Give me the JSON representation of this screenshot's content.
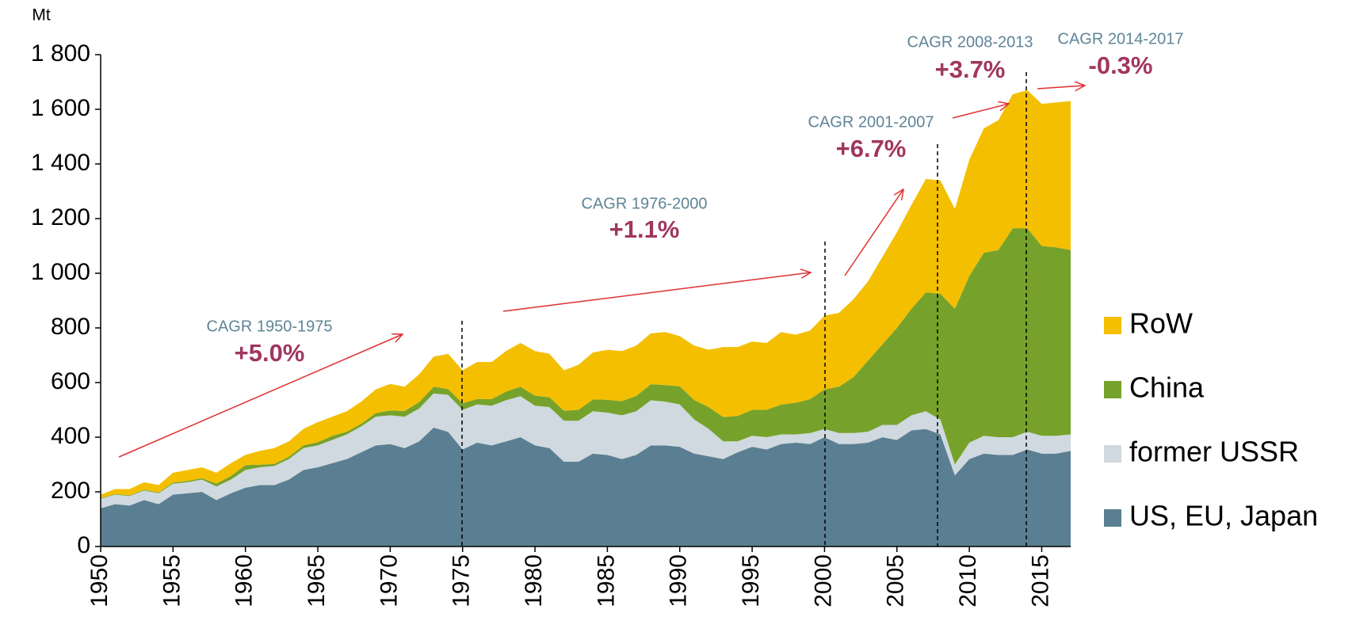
{
  "chart_data": {
    "type": "stacked_area",
    "y_unit_label": "Mt",
    "x": [
      1950,
      1951,
      1952,
      1953,
      1954,
      1955,
      1956,
      1957,
      1958,
      1959,
      1960,
      1961,
      1962,
      1963,
      1964,
      1965,
      1966,
      1967,
      1968,
      1969,
      1970,
      1971,
      1972,
      1973,
      1974,
      1975,
      1976,
      1977,
      1978,
      1979,
      1980,
      1981,
      1982,
      1983,
      1984,
      1985,
      1986,
      1987,
      1988,
      1989,
      1990,
      1991,
      1992,
      1993,
      1994,
      1995,
      1996,
      1997,
      1998,
      1999,
      2000,
      2001,
      2002,
      2003,
      2004,
      2005,
      2006,
      2007,
      2008,
      2009,
      2010,
      2011,
      2012,
      2013,
      2014,
      2015,
      2016,
      2017
    ],
    "series": [
      {
        "name": "US, EU, Japan",
        "color": "#5b7f92",
        "values": [
          140,
          155,
          150,
          170,
          155,
          190,
          195,
          200,
          170,
          195,
          215,
          225,
          225,
          245,
          280,
          290,
          305,
          320,
          345,
          370,
          375,
          360,
          385,
          435,
          420,
          355,
          380,
          370,
          385,
          400,
          370,
          360,
          310,
          310,
          340,
          335,
          320,
          335,
          370,
          370,
          365,
          340,
          330,
          320,
          345,
          365,
          355,
          375,
          380,
          375,
          400,
          375,
          375,
          380,
          400,
          390,
          425,
          430,
          410,
          260,
          320,
          340,
          335,
          335,
          355,
          340,
          340,
          350
        ]
      },
      {
        "name": "former USSR",
        "color": "#cfd9df",
        "values": [
          35,
          35,
          35,
          35,
          40,
          40,
          40,
          45,
          50,
          50,
          65,
          65,
          70,
          75,
          80,
          80,
          85,
          90,
          95,
          105,
          105,
          115,
          120,
          125,
          135,
          145,
          140,
          145,
          150,
          150,
          145,
          150,
          150,
          150,
          155,
          155,
          160,
          160,
          165,
          160,
          155,
          125,
          100,
          65,
          40,
          40,
          45,
          35,
          30,
          40,
          30,
          40,
          40,
          40,
          45,
          55,
          55,
          65,
          55,
          40,
          60,
          65,
          65,
          65,
          65,
          65,
          65,
          60
        ]
      },
      {
        "name": "China",
        "color": "#76a22b",
        "values": [
          2,
          2,
          2,
          3,
          3,
          4,
          5,
          5,
          10,
          13,
          18,
          9,
          7,
          8,
          10,
          12,
          15,
          10,
          9,
          13,
          18,
          21,
          23,
          25,
          21,
          24,
          20,
          24,
          32,
          35,
          37,
          36,
          37,
          40,
          43,
          47,
          52,
          56,
          59,
          61,
          66,
          71,
          80,
          89,
          93,
          95,
          101,
          109,
          116,
          124,
          145,
          170,
          205,
          260,
          295,
          355,
          390,
          435,
          460,
          570,
          610,
          670,
          685,
          765,
          745,
          695,
          690,
          675
        ]
      },
      {
        "name": "RoW",
        "color": "#f4bf00",
        "values": [
          13,
          18,
          23,
          27,
          27,
          36,
          40,
          40,
          40,
          47,
          37,
          51,
          58,
          57,
          60,
          73,
          70,
          75,
          81,
          87,
          97,
          89,
          102,
          110,
          129,
          121,
          135,
          136,
          148,
          160,
          163,
          159,
          148,
          165,
          172,
          183,
          183,
          184,
          186,
          194,
          184,
          199,
          210,
          256,
          252,
          250,
          244,
          266,
          249,
          251,
          270,
          270,
          285,
          290,
          320,
          350,
          380,
          415,
          415,
          365,
          425,
          455,
          475,
          490,
          505,
          520,
          530,
          545
        ]
      }
    ],
    "xlim": [
      1950,
      2017
    ],
    "xticks": [
      1950,
      1955,
      1960,
      1965,
      1970,
      1975,
      1980,
      1985,
      1990,
      1995,
      2000,
      2005,
      2010,
      2015
    ],
    "ylim": [
      0,
      1800
    ],
    "yticks": [
      0,
      200,
      400,
      600,
      800,
      {
        "value": 1000,
        "label": "1 000"
      },
      {
        "value": 1200,
        "label": "1 200"
      },
      {
        "value": 1400,
        "label": "1 400"
      },
      {
        "value": 1600,
        "label": "1 600"
      },
      {
        "value": 1800,
        "label": "1 800"
      }
    ],
    "legend": "right",
    "annotations": [
      {
        "label": "CAGR 1950-1975",
        "value": "+5.0%"
      },
      {
        "label": "CAGR 1976-2000",
        "value": "+1.1%"
      },
      {
        "label": "CAGR 2001-2007",
        "value": "+6.7%"
      },
      {
        "label": "CAGR 2008-2013",
        "value": "+3.7%"
      },
      {
        "label": "CAGR 2014-2017",
        "value": "-0.3%"
      }
    ]
  }
}
